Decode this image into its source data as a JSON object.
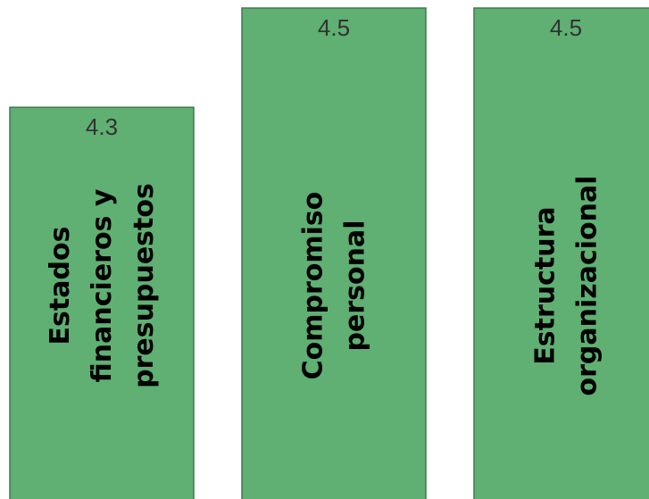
{
  "chart_data": {
    "type": "bar",
    "categories": [
      [
        "Estados",
        "financieros y",
        "presupuestos"
      ],
      [
        "Compromiso",
        "personal"
      ],
      [
        "Estructura",
        "organizacional"
      ]
    ],
    "values": [
      4.3,
      4.5,
      4.5
    ],
    "value_labels": [
      "4.3",
      "4.5",
      "4.5"
    ],
    "title": "",
    "xlabel": "",
    "ylabel": "",
    "ylim": [
      0,
      4.5
    ],
    "grid": false,
    "legend": "none",
    "colors": {
      "bar_fill": "#5fb072",
      "bar_stroke": "#3d7a4e"
    }
  }
}
